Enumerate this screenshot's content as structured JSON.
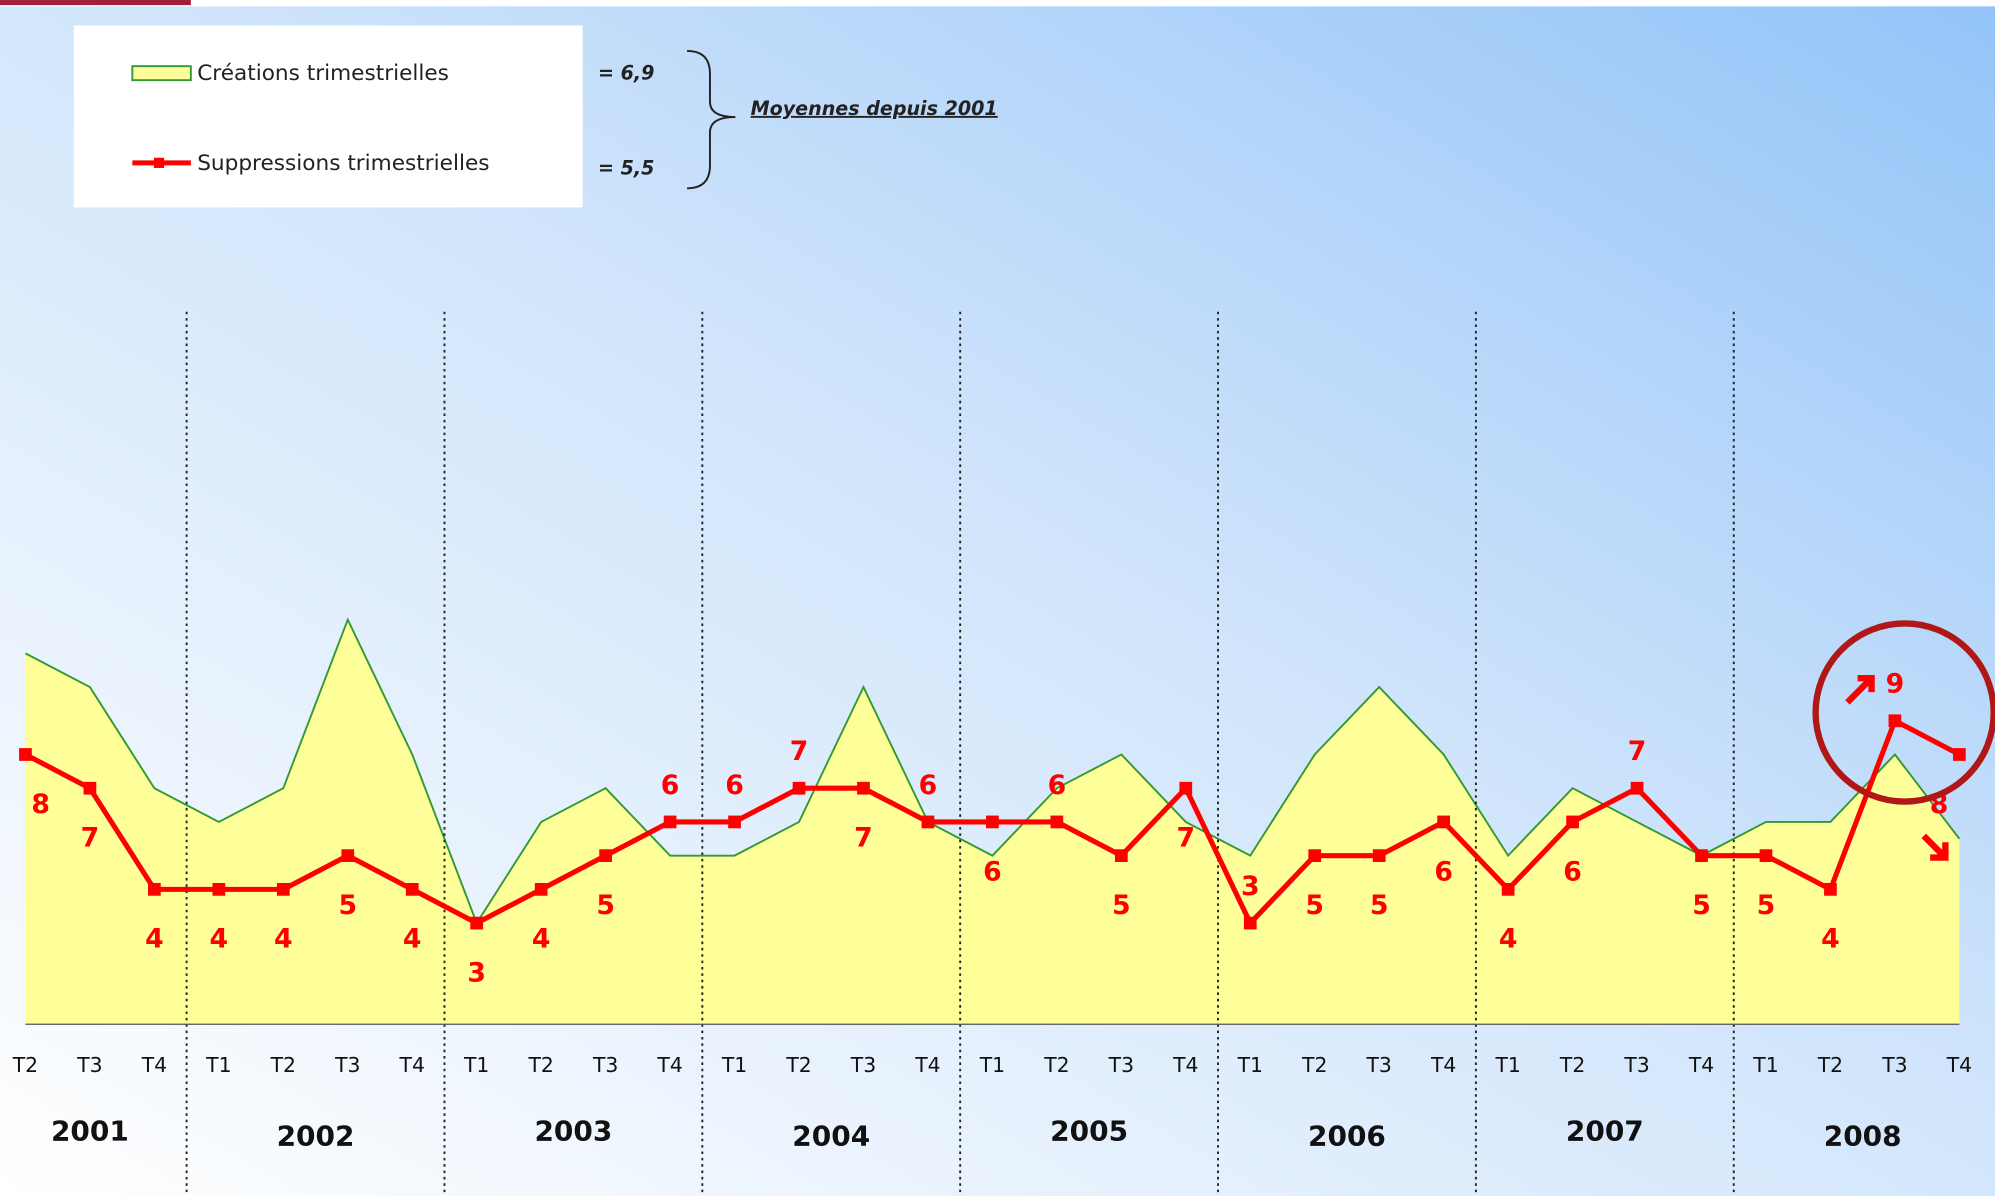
{
  "chart_data": {
    "type": "area_line",
    "categories": [
      "T2",
      "T3",
      "T4",
      "T1",
      "T2",
      "T3",
      "T4",
      "T1",
      "T2",
      "T3",
      "T4",
      "T1",
      "T2",
      "T3",
      "T4",
      "T1",
      "T2",
      "T3",
      "T4",
      "T1",
      "T2",
      "T3",
      "T4",
      "T1",
      "T2",
      "T3",
      "T4",
      "T1",
      "T2",
      "T3",
      "T4"
    ],
    "years": [
      "2001",
      "2002",
      "2003",
      "2004",
      "2005",
      "2006",
      "2007",
      "2008"
    ],
    "series": [
      {
        "name": "Créations trimestrielles",
        "color": "#339933",
        "fill": "#ffff99",
        "average_label": "= 6,9",
        "values": [
          11,
          10,
          7,
          6,
          7,
          12,
          8,
          3,
          6,
          7,
          5,
          5,
          6,
          10,
          6,
          5,
          7,
          8,
          6,
          5,
          8,
          10,
          8,
          5,
          7,
          6,
          5,
          6,
          6,
          8,
          5.5
        ]
      },
      {
        "name": "Suppressions trimestrielles",
        "color": "#ff0000",
        "average_label": "= 5,5",
        "values": [
          8,
          7,
          4,
          4,
          4,
          5,
          4,
          3,
          4,
          5,
          6,
          6,
          7,
          7,
          6,
          6,
          6,
          5,
          7,
          3,
          5,
          5,
          6,
          4,
          6,
          7,
          5,
          5,
          4,
          9,
          8
        ]
      }
    ],
    "note": "Moyennes depuis 2001",
    "ylim": [
      0,
      30
    ]
  }
}
